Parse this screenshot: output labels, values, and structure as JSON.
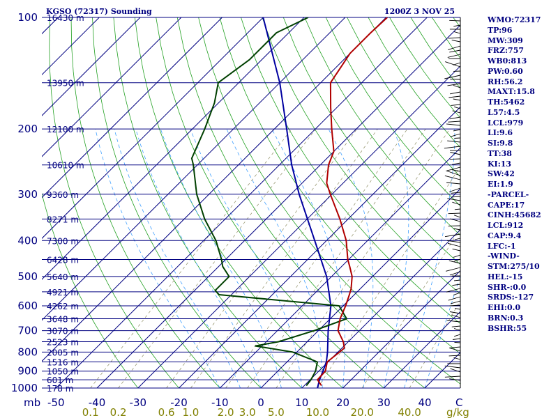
{
  "chart_data": {
    "type": "skew-t",
    "title": "KGSO (72317) Sounding",
    "valid_time": "1200Z  3 NOV 25",
    "pressure_ticks": [
      "100",
      "200",
      "300",
      "400",
      "500",
      "600",
      "700",
      "800",
      "900",
      "1000"
    ],
    "pressure_unit": "mb",
    "temp_ticks": [
      "-50",
      "-40",
      "-30",
      "-20",
      "-10",
      "0",
      "10",
      "20",
      "30",
      "40"
    ],
    "temp_unit": "C",
    "mixing_ratio_ticks": [
      "0.1",
      "0.2",
      "0.6",
      "1.0",
      "2.0",
      "3.0",
      "5.0",
      "10.0",
      "20.0",
      "40.0"
    ],
    "mixing_ratio_unit": "g/kg",
    "height_labels": [
      {
        "p": 100,
        "label": "16430 m"
      },
      {
        "p": 150,
        "label": "13950 m"
      },
      {
        "p": 200,
        "label": "12100 m"
      },
      {
        "p": 250,
        "label": "10610 m"
      },
      {
        "p": 300,
        "label": "9360 m"
      },
      {
        "p": 350,
        "label": "8271 m"
      },
      {
        "p": 400,
        "label": "7300 m"
      },
      {
        "p": 450,
        "label": "6428 m"
      },
      {
        "p": 500,
        "label": "5640 m"
      },
      {
        "p": 550,
        "label": "4921 m"
      },
      {
        "p": 600,
        "label": "4262 m"
      },
      {
        "p": 650,
        "label": "3648 m"
      },
      {
        "p": 700,
        "label": "3070 m"
      },
      {
        "p": 750,
        "label": "2523 m"
      },
      {
        "p": 800,
        "label": "2005 m"
      },
      {
        "p": 850,
        "label": "1516 m"
      },
      {
        "p": 900,
        "label": "1050 m"
      },
      {
        "p": 950,
        "label": "601 m"
      },
      {
        "p": 1000,
        "label": "178 m"
      }
    ],
    "temperature": [
      {
        "p": 985,
        "t": 14.2
      },
      {
        "p": 950,
        "t": 11.8
      },
      {
        "p": 900,
        "t": 11.6
      },
      {
        "p": 850,
        "t": 9.8
      },
      {
        "p": 800,
        "t": 10.4
      },
      {
        "p": 780,
        "t": 10.6
      },
      {
        "p": 750,
        "t": 8.8
      },
      {
        "p": 700,
        "t": 4.8
      },
      {
        "p": 650,
        "t": 2.4
      },
      {
        "p": 600,
        "t": 0.6
      },
      {
        "p": 560,
        "t": -1.2
      },
      {
        "p": 540,
        "t": -2.2
      },
      {
        "p": 500,
        "t": -5.0
      },
      {
        "p": 470,
        "t": -8.0
      },
      {
        "p": 450,
        "t": -10.2
      },
      {
        "p": 400,
        "t": -15.2
      },
      {
        "p": 350,
        "t": -22.0
      },
      {
        "p": 300,
        "t": -30.4
      },
      {
        "p": 280,
        "t": -34.0
      },
      {
        "p": 250,
        "t": -38.0
      },
      {
        "p": 230,
        "t": -40.0
      },
      {
        "p": 200,
        "t": -46.0
      },
      {
        "p": 175,
        "t": -51.5
      },
      {
        "p": 150,
        "t": -57.6
      },
      {
        "p": 125,
        "t": -60.0
      },
      {
        "p": 110,
        "t": -60.0
      },
      {
        "p": 100,
        "t": -59.7
      }
    ],
    "dewpoint": [
      {
        "p": 985,
        "t": 10.5
      },
      {
        "p": 950,
        "t": 10.2
      },
      {
        "p": 900,
        "t": 9.2
      },
      {
        "p": 850,
        "t": 7.4
      },
      {
        "p": 800,
        "t": -1.0
      },
      {
        "p": 770,
        "t": -11.6
      },
      {
        "p": 750,
        "t": -7.0
      },
      {
        "p": 700,
        "t": -1.0
      },
      {
        "p": 650,
        "t": 4.0
      },
      {
        "p": 600,
        "t": -1.0
      },
      {
        "p": 560,
        "t": -33.0
      },
      {
        "p": 545,
        "t": -35.0
      },
      {
        "p": 500,
        "t": -35.0
      },
      {
        "p": 470,
        "t": -39.0
      },
      {
        "p": 450,
        "t": -41.0
      },
      {
        "p": 400,
        "t": -47.0
      },
      {
        "p": 350,
        "t": -55.0
      },
      {
        "p": 300,
        "t": -63.0
      },
      {
        "p": 250,
        "t": -71.0
      },
      {
        "p": 240,
        "t": -73.0
      },
      {
        "p": 200,
        "t": -77.0
      },
      {
        "p": 170,
        "t": -81.0
      },
      {
        "p": 150,
        "t": -85.0
      },
      {
        "p": 130,
        "t": -83.0
      },
      {
        "p": 110,
        "t": -83.0
      },
      {
        "p": 100,
        "t": -79.0
      }
    ],
    "parcel": [
      {
        "p": 1000,
        "t": 13.8
      },
      {
        "p": 950,
        "t": 12.3
      },
      {
        "p": 900,
        "t": 11.0
      },
      {
        "p": 850,
        "t": 9.6
      },
      {
        "p": 800,
        "t": 7.5
      },
      {
        "p": 700,
        "t": 2.4
      },
      {
        "p": 600,
        "t": -3.0
      },
      {
        "p": 500,
        "t": -11.2
      },
      {
        "p": 400,
        "t": -22.9
      },
      {
        "p": 300,
        "t": -38.0
      },
      {
        "p": 250,
        "t": -47.0
      },
      {
        "p": 200,
        "t": -57.0
      },
      {
        "p": 150,
        "t": -70.0
      },
      {
        "p": 100,
        "t": -90.0
      }
    ],
    "indices": [
      "WMO:72317",
      "TP:96",
      "MW:309",
      "FRZ:757",
      "WB0:813",
      "PW:0.60",
      "RH:56.2",
      "MAXT:15.8",
      "TH:5462",
      "L57:4.5",
      "LCL:979",
      "LI:9.6",
      "SI:9.8",
      "TT:38",
      "KI:13",
      "SW:42",
      "EI:1.9",
      "-PARCEL-",
      "CAPE:17",
      "CINH:45682",
      "LCL:912",
      "CAP:9.4",
      "LFC:-1",
      "-WIND-",
      "STM:275/10",
      "HEL:-15",
      "SHR-:0.0",
      "SRDS:-127",
      "EHI:0.0",
      "BRN:0.3",
      "BSHR:55"
    ],
    "line_colors": {
      "temperature": "#b00000",
      "dewpoint": "#004000",
      "parcel": "#0000a0",
      "isobar": "#000080",
      "isotherm": "#000080",
      "dry_adiabat": "#22a022",
      "moist_adiabat": "#40a0ff",
      "mixing_ratio": "#8b8b60",
      "mixing_ratio_label": "#808000",
      "title": "#000080"
    }
  }
}
